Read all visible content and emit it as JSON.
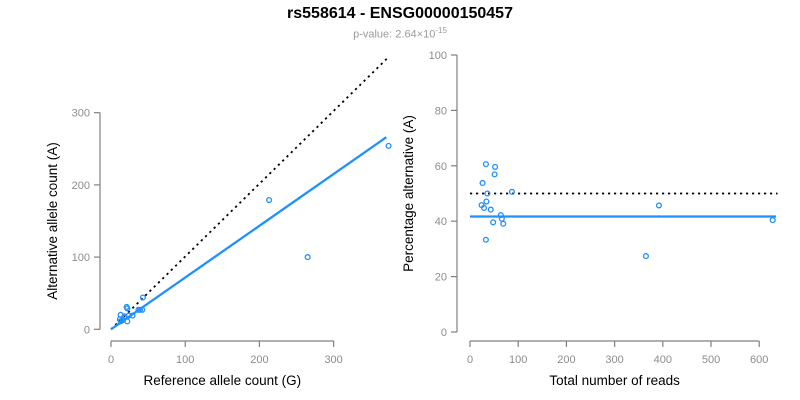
{
  "header": {
    "title": "rs558614 - ENSG00000150457",
    "p_value_prefix": "p-value: 2.64×10",
    "p_value_exponent": "-15"
  },
  "colors": {
    "accent_blue": "#1E90FF",
    "identity_black": "#000000",
    "axis_gray": "#808080",
    "tick_label_gray": "#8c8c8c",
    "subtitle_gray": "#9a9a9a",
    "axis_title_black": "#000000"
  },
  "chart_data": [
    {
      "type": "scatter",
      "panel": "allele-counts",
      "xlabel": "Reference allele count (G)",
      "ylabel": "Alternative allele count (A)",
      "xticks": [
        0,
        100,
        200,
        300
      ],
      "yticks": [
        0,
        100,
        200,
        300
      ],
      "xlim": [
        0,
        380
      ],
      "ylim": [
        0,
        385
      ],
      "grid": false,
      "points": [
        [
          13,
          20
        ],
        [
          21,
          31
        ],
        [
          22,
          29
        ],
        [
          12,
          14
        ],
        [
          18,
          18
        ],
        [
          43,
          44
        ],
        [
          18,
          16
        ],
        [
          13,
          11
        ],
        [
          16,
          13
        ],
        [
          24,
          19
        ],
        [
          37,
          27
        ],
        [
          39,
          27
        ],
        [
          29,
          19
        ],
        [
          42,
          27
        ],
        [
          22,
          11
        ],
        [
          213,
          179
        ],
        [
          265,
          100
        ],
        [
          374,
          254
        ]
      ],
      "lines": [
        {
          "name": "identity",
          "style": "dotted",
          "color": "#000000",
          "from": [
            0,
            0
          ],
          "to": [
            375,
            378
          ]
        },
        {
          "name": "regression",
          "style": "solid",
          "color": "#1E90FF",
          "from": [
            0,
            0
          ],
          "to": [
            371,
            266
          ]
        }
      ]
    },
    {
      "type": "scatter",
      "panel": "percentage-alternative",
      "xlabel": "Total number of reads",
      "ylabel": "Percentage alternative (A)",
      "xticks": [
        0,
        100,
        200,
        300,
        400,
        500,
        600
      ],
      "yticks": [
        0,
        20,
        40,
        60,
        80,
        100
      ],
      "xlim": [
        0,
        640
      ],
      "ylim": [
        0,
        100
      ],
      "grid": false,
      "points": [
        [
          33,
          60.6
        ],
        [
          52,
          59.6
        ],
        [
          51,
          56.9
        ],
        [
          26,
          53.8
        ],
        [
          36,
          50.0
        ],
        [
          87,
          50.6
        ],
        [
          34,
          47.1
        ],
        [
          24,
          45.8
        ],
        [
          29,
          44.8
        ],
        [
          43,
          44.2
        ],
        [
          64,
          42.2
        ],
        [
          66,
          40.9
        ],
        [
          48,
          39.6
        ],
        [
          69,
          39.1
        ],
        [
          33,
          33.3
        ],
        [
          392,
          45.7
        ],
        [
          365,
          27.4
        ],
        [
          628,
          40.4
        ]
      ],
      "lines": [
        {
          "name": "fifty-percent",
          "style": "dotted",
          "color": "#000000",
          "from": [
            0,
            50
          ],
          "to": [
            638,
            50
          ]
        },
        {
          "name": "mean-percentage",
          "style": "solid",
          "color": "#1E90FF",
          "from": [
            0,
            41.7
          ],
          "to": [
            635,
            41.7
          ]
        }
      ]
    }
  ]
}
